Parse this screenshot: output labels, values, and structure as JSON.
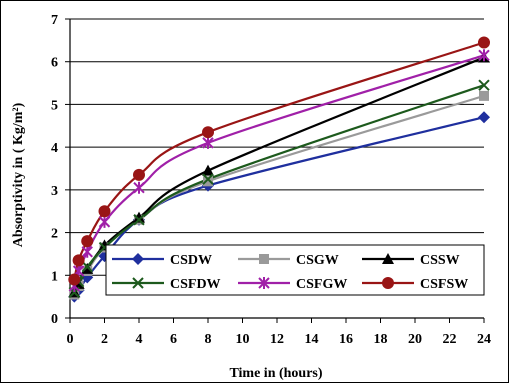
{
  "chart_data": {
    "type": "line",
    "xlabel": "Time in (hours)",
    "ylabel": "Absorptivity in ( Kg/m²)",
    "xlim": [
      0,
      24
    ],
    "ylim": [
      0,
      7
    ],
    "x_ticks": [
      0,
      2,
      4,
      6,
      8,
      10,
      12,
      14,
      16,
      18,
      20,
      22,
      24
    ],
    "y_ticks": [
      0,
      1,
      2,
      3,
      4,
      5,
      6,
      7
    ],
    "grid": "horizontal",
    "legend_position": "bottom-right, inside",
    "series": [
      {
        "name": "CSDW",
        "color": "#1f2f9e",
        "marker": "diamond",
        "x": [
          0.25,
          0.5,
          1,
          2,
          4,
          8,
          24
        ],
        "y": [
          0.5,
          0.65,
          0.95,
          1.45,
          2.3,
          3.1,
          4.7
        ]
      },
      {
        "name": "CSGW",
        "color": "#9a9a9a",
        "marker": "square",
        "x": [
          0.25,
          0.5,
          1,
          2,
          4,
          8,
          24
        ],
        "y": [
          0.55,
          0.75,
          1.1,
          1.65,
          2.3,
          3.2,
          5.2
        ]
      },
      {
        "name": "CSSW",
        "color": "#000000",
        "marker": "triangle",
        "x": [
          0.25,
          0.5,
          1,
          2,
          4,
          8,
          24
        ],
        "y": [
          0.6,
          0.8,
          1.15,
          1.7,
          2.35,
          3.45,
          6.1
        ]
      },
      {
        "name": "CSFDW",
        "color": "#1d5a1d",
        "marker": "x",
        "x": [
          0.25,
          0.5,
          1,
          2,
          4,
          8,
          24
        ],
        "y": [
          0.6,
          0.85,
          1.2,
          1.65,
          2.3,
          3.25,
          5.45
        ]
      },
      {
        "name": "CSFGW",
        "color": "#a020a8",
        "marker": "star",
        "x": [
          0.25,
          0.5,
          1,
          2,
          4,
          8,
          24
        ],
        "y": [
          0.75,
          1.1,
          1.55,
          2.25,
          3.05,
          4.1,
          6.15
        ]
      },
      {
        "name": "CSFSW",
        "color": "#991515",
        "marker": "circle",
        "x": [
          0.25,
          0.5,
          1,
          2,
          4,
          8,
          24
        ],
        "y": [
          0.9,
          1.35,
          1.8,
          2.5,
          3.35,
          4.35,
          6.45
        ]
      }
    ]
  }
}
